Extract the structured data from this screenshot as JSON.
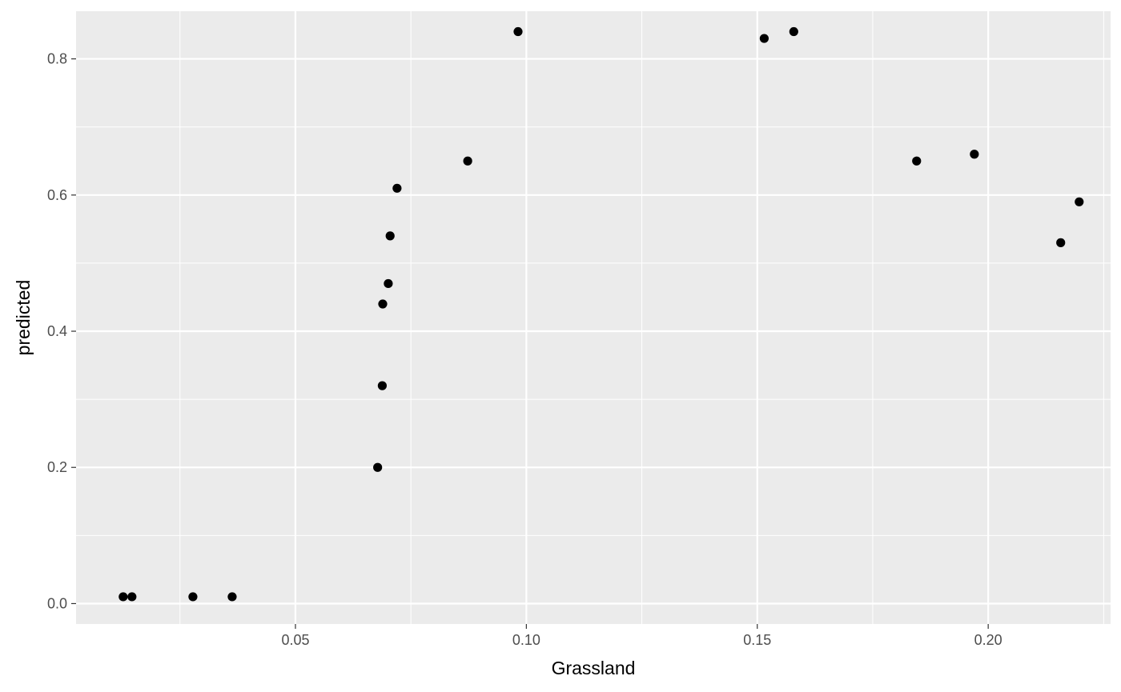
{
  "chart_data": {
    "type": "scatter",
    "title": "",
    "xlabel": "Grassland",
    "ylabel": "predicted",
    "xlim": [
      0.0025,
      0.2265
    ],
    "ylim": [
      -0.03,
      0.87
    ],
    "x_ticks": [
      0.05,
      0.1,
      0.15,
      0.2
    ],
    "x_tick_labels": [
      "0.05",
      "0.10",
      "0.15",
      "0.20"
    ],
    "y_ticks": [
      0.0,
      0.2,
      0.4,
      0.6,
      0.8
    ],
    "y_tick_labels": [
      "0.0",
      "0.2",
      "0.4",
      "0.6",
      "0.8"
    ],
    "grid": true,
    "background": "#ebebeb",
    "point_color": "#000000",
    "points": [
      {
        "x": 0.0127,
        "y": 0.01
      },
      {
        "x": 0.0146,
        "y": 0.01
      },
      {
        "x": 0.0278,
        "y": 0.01
      },
      {
        "x": 0.0363,
        "y": 0.01
      },
      {
        "x": 0.0678,
        "y": 0.2
      },
      {
        "x": 0.0688,
        "y": 0.32
      },
      {
        "x": 0.0689,
        "y": 0.44
      },
      {
        "x": 0.0701,
        "y": 0.47
      },
      {
        "x": 0.0705,
        "y": 0.54
      },
      {
        "x": 0.072,
        "y": 0.61
      },
      {
        "x": 0.0873,
        "y": 0.65
      },
      {
        "x": 0.0982,
        "y": 0.84
      },
      {
        "x": 0.1515,
        "y": 0.83
      },
      {
        "x": 0.1579,
        "y": 0.84
      },
      {
        "x": 0.1845,
        "y": 0.65
      },
      {
        "x": 0.197,
        "y": 0.66
      },
      {
        "x": 0.2157,
        "y": 0.53
      },
      {
        "x": 0.2197,
        "y": 0.59
      }
    ]
  }
}
